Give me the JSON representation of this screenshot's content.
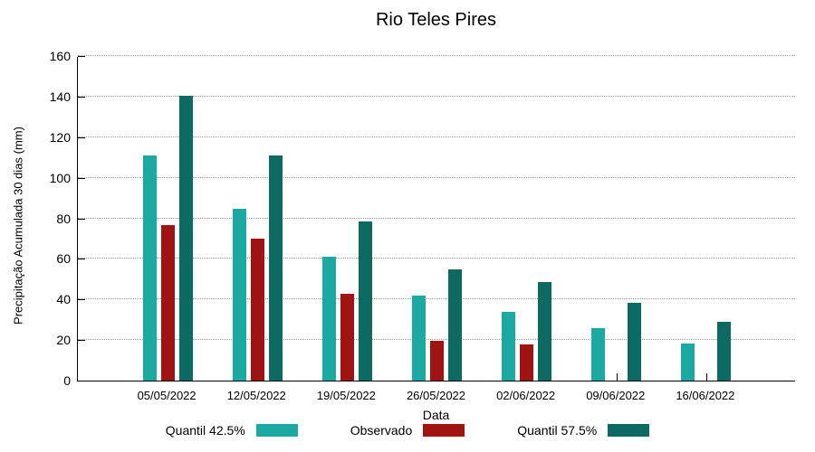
{
  "chart_data": {
    "type": "bar",
    "title": "Rio Teles Pires",
    "xlabel": "Data",
    "ylabel": "Precipitação Acumulada 30 dias (mm)",
    "ylim": [
      0,
      160
    ],
    "ytick_step": 20,
    "grid": true,
    "legend_position": "bottom",
    "categories": [
      "05/05/2022",
      "12/05/2022",
      "19/05/2022",
      "26/05/2022",
      "02/06/2022",
      "09/06/2022",
      "16/06/2022"
    ],
    "series": [
      {
        "name": "Quantil 42.5%",
        "color": "#1CA9A2",
        "values": [
          111,
          84.5,
          61,
          42,
          34,
          26,
          18.5
        ]
      },
      {
        "name": "Observado",
        "color": "#A01313",
        "values": [
          76.5,
          70,
          43,
          19.5,
          18,
          null,
          null
        ]
      },
      {
        "name": "Quantil 57.5%",
        "color": "#0C6A63",
        "values": [
          140.5,
          111,
          78.5,
          55,
          48.5,
          38.5,
          29
        ]
      }
    ]
  }
}
